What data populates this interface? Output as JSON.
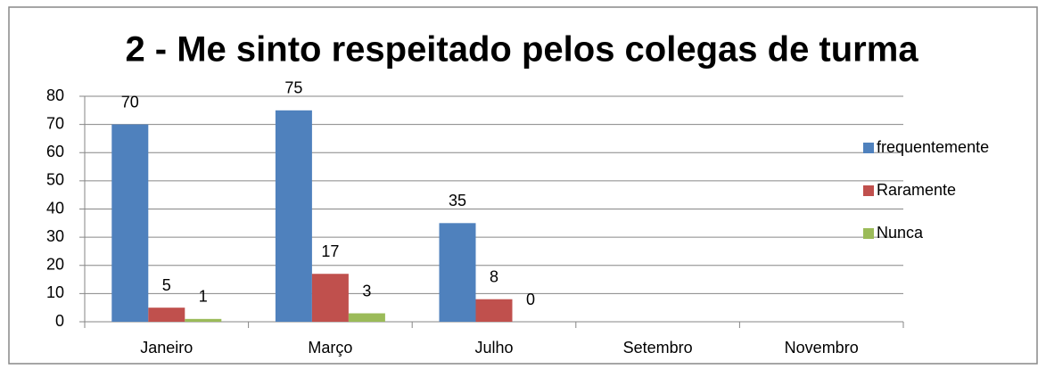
{
  "chart_data": {
    "type": "bar",
    "title": "2 - Me sinto respeitado pelos colegas de turma",
    "categories": [
      "Janeiro",
      "Março",
      "Julho",
      "Setembro",
      "Novembro"
    ],
    "series": [
      {
        "name": "frequentemente",
        "color": "#4f81bd",
        "values": [
          70,
          75,
          35,
          null,
          null
        ]
      },
      {
        "name": "Raramente",
        "color": "#c0504d",
        "values": [
          5,
          17,
          8,
          null,
          null
        ]
      },
      {
        "name": "Nunca",
        "color": "#9bbb59",
        "values": [
          1,
          3,
          0,
          null,
          null
        ]
      }
    ],
    "ylim": [
      0,
      80
    ],
    "yticks": [
      0,
      10,
      20,
      30,
      40,
      50,
      60,
      70,
      80
    ],
    "grid": true,
    "legend": "right"
  }
}
